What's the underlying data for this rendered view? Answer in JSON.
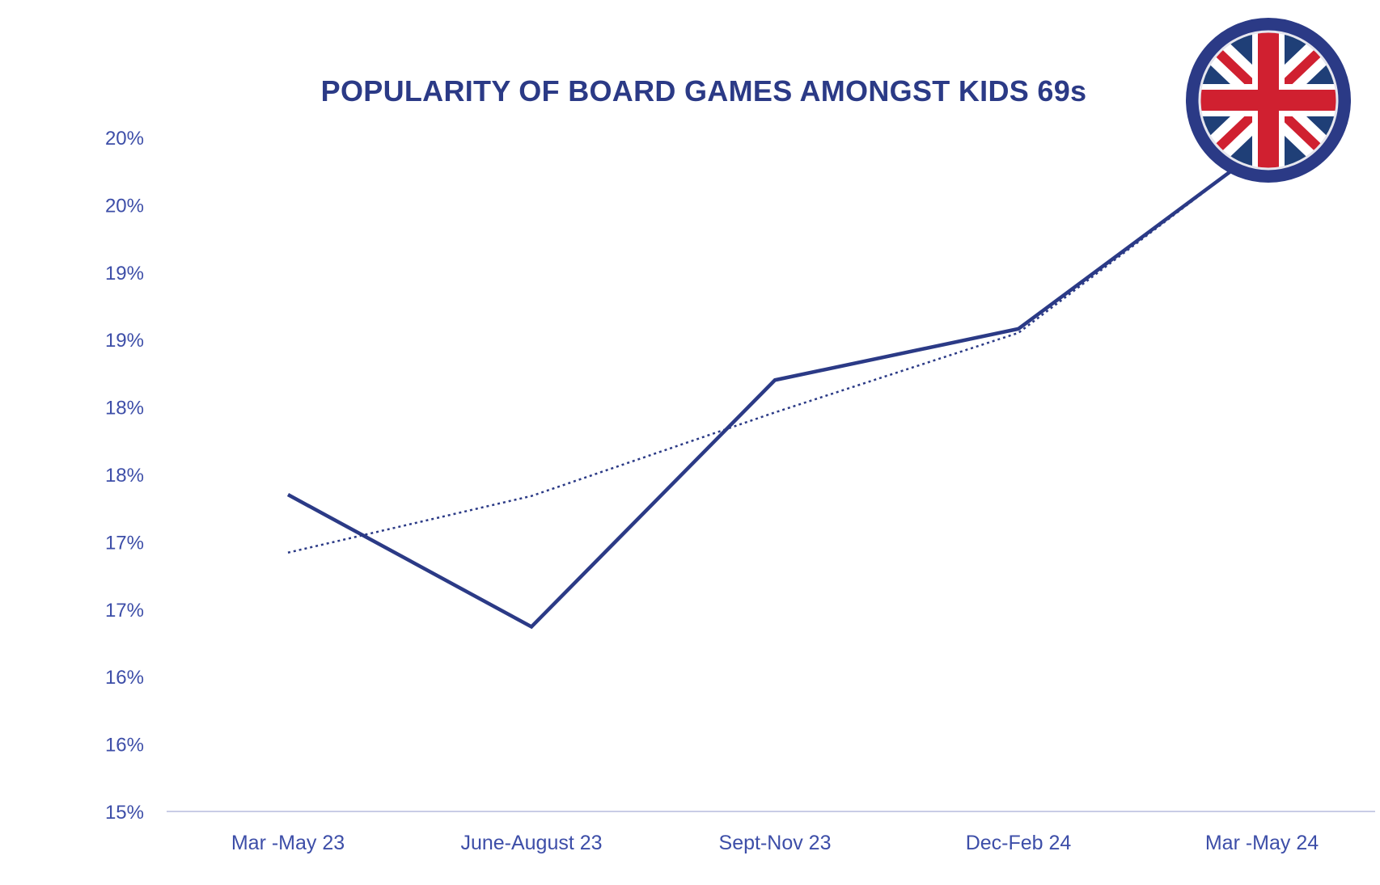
{
  "chart_data": {
    "type": "line",
    "title": "POPULARITY OF BOARD GAMES AMONGST KIDS 69s",
    "xlabel": "",
    "ylabel": "",
    "categories": [
      "Mar -May 23",
      "June-August 23",
      "Sept-Nov 23",
      "Dec-Feb 24",
      "Mar -May 24"
    ],
    "y_tick_labels": [
      "20%",
      "20%",
      "19%",
      "19%",
      "18%",
      "18%",
      "17%",
      "17%",
      "16%",
      "16%",
      "15%"
    ],
    "ylim": [
      15,
      20
    ],
    "series": [
      {
        "values": [
          17.35,
          16.37,
          18.2,
          18.58,
          19.92
        ],
        "style": "solid",
        "color": "#2b3a86"
      },
      {
        "values": [
          16.92,
          17.34,
          17.96,
          18.55,
          19.92
        ],
        "style": "dotted",
        "color": "#2b3a86"
      }
    ],
    "trendline": "linear",
    "grid": false,
    "legend": "none",
    "colors": {
      "text": "#3d4ea8",
      "title": "#2b3a86",
      "line": "#2b3a86",
      "axis": "#c9cce6"
    }
  },
  "flag": {
    "icon": "uk-flag-badge-icon",
    "ring_color": "#2b3a86",
    "red": "#d02030",
    "blue": "#1f3f77"
  }
}
